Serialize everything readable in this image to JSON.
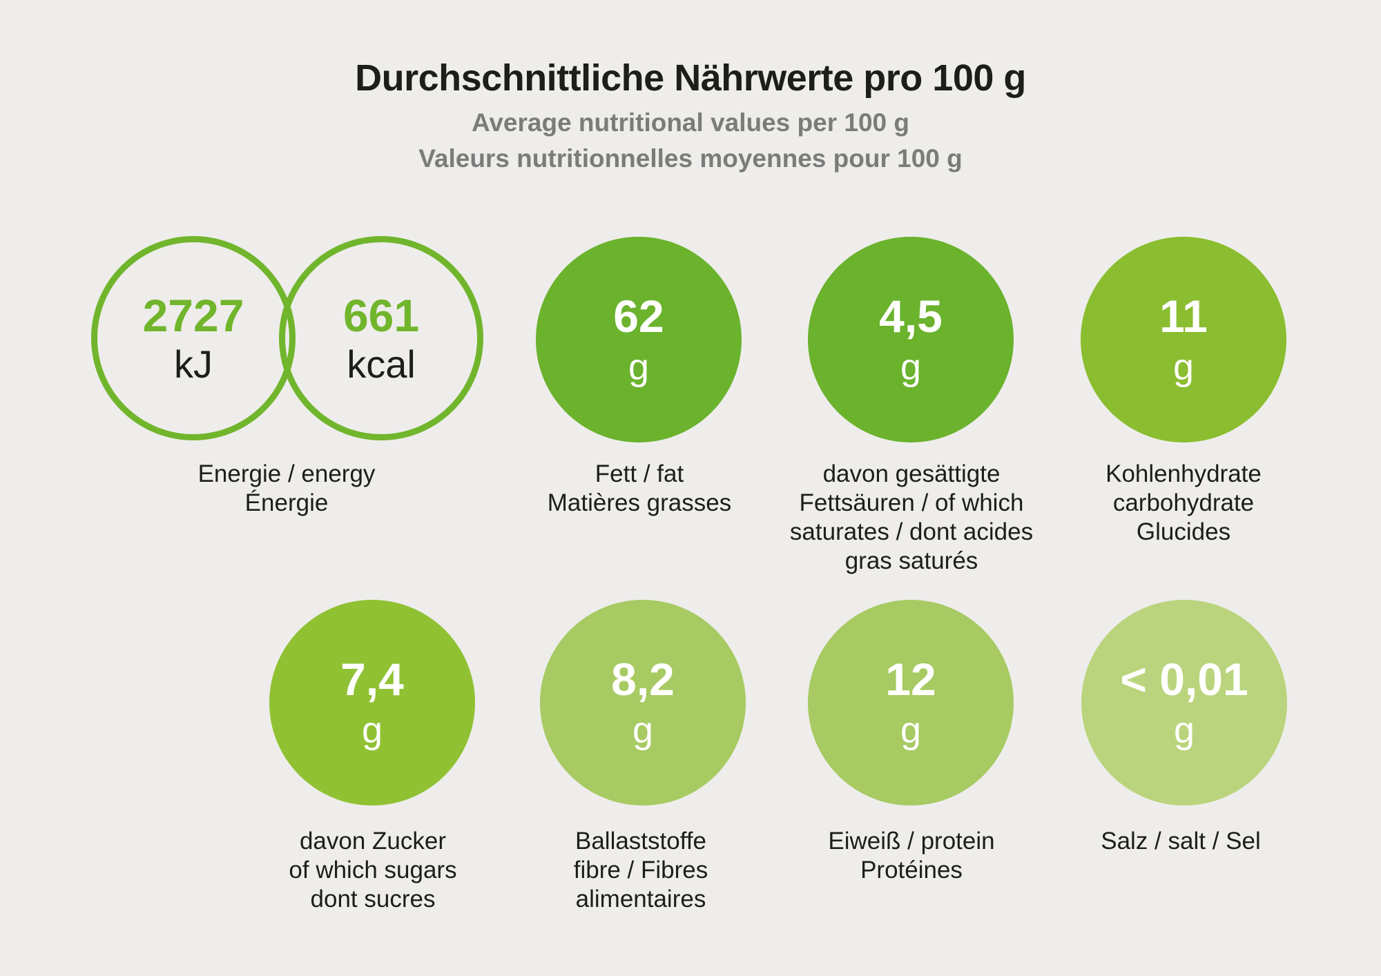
{
  "header": {
    "title": "Durchschnittliche Nährwerte pro 100 g",
    "subtitle_en": "Average nutritional values per 100 g",
    "subtitle_fr": "Valeurs nutritionnelles moyennes pour 100 g"
  },
  "colors": {
    "background": "#eeedeb",
    "ring_stroke": "#71b52c",
    "ring_number": "#71b52c",
    "title_text": "#1d1d1b",
    "subtitle_text": "#7b7b7a",
    "bubble_text": "#ffffff"
  },
  "energy": {
    "kj": {
      "value": "2727",
      "unit": "kJ"
    },
    "kcal": {
      "value": "661",
      "unit": "kcal"
    },
    "label_lines": [
      "Energie / energy",
      "Énergie"
    ]
  },
  "nutrients": [
    {
      "value": "62",
      "unit": "g",
      "color": "#6bb22d",
      "label_lines": [
        "Fett / fat",
        "Matières grasses"
      ]
    },
    {
      "value": "4,5",
      "unit": "g",
      "color": "#6bb22d",
      "label_lines": [
        "davon gesättigte",
        "Fettsäuren / of which",
        "saturates / dont acides",
        "gras saturés"
      ]
    },
    {
      "value": "11",
      "unit": "g",
      "color": "#8abd2f",
      "label_lines": [
        "Kohlenhydrate",
        "carbohydrate",
        "Glucides"
      ]
    },
    {
      "value": "7,4",
      "unit": "g",
      "color": "#90c133",
      "label_lines": [
        "davon Zucker",
        "of which sugars",
        "dont sucres"
      ]
    },
    {
      "value": "8,2",
      "unit": "g",
      "color": "#a7ca62",
      "label_lines": [
        "Ballaststoffe",
        "fibre / Fibres",
        "alimentaires"
      ]
    },
    {
      "value": "12",
      "unit": "g",
      "color": "#a7ca62",
      "label_lines": [
        "Eiweiß / protein",
        "Protéines"
      ]
    },
    {
      "value": "< 0,01",
      "unit": "g",
      "color": "#bad47d",
      "label_lines": [
        "Salz / salt / Sel"
      ]
    }
  ],
  "chart_data": {
    "type": "table",
    "title": "Durchschnittliche Nährwerte pro 100 g",
    "subtitle": [
      "Average nutritional values per 100 g",
      "Valeurs nutritionnelles moyennes pour 100 g"
    ],
    "categories": [
      "Energie / energy / Énergie (kJ)",
      "Energie / energy / Énergie (kcal)",
      "Fett / fat / Matières grasses",
      "davon gesättigte Fettsäuren / of which saturates / dont acides gras saturés",
      "Kohlenhydrate / carbohydrate / Glucides",
      "davon Zucker / of which sugars / dont sucres",
      "Ballaststoffe / fibre / Fibres alimentaires",
      "Eiweiß / protein / Protéines",
      "Salz / salt / Sel"
    ],
    "values": [
      2727,
      661,
      62,
      4.5,
      11,
      7.4,
      8.2,
      12,
      "<0.01"
    ],
    "units": [
      "kJ",
      "kcal",
      "g",
      "g",
      "g",
      "g",
      "g",
      "g",
      "g"
    ]
  }
}
